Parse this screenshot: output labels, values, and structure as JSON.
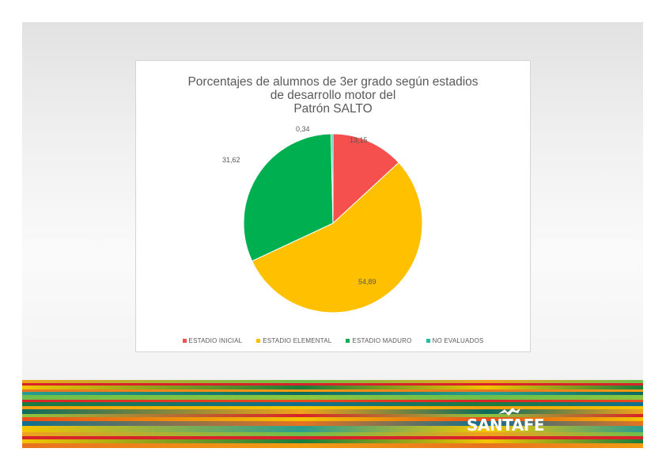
{
  "chart_data": {
    "type": "pie",
    "title_lines": [
      "Porcentajes de alumnos de 3er grado según estadios",
      "de desarrollo motor del",
      "Patrón SALTO"
    ],
    "slices": [
      {
        "label": "ESTADIO INICIAL",
        "value": 13.15,
        "display": "13,15",
        "color": "#f5504e"
      },
      {
        "label": "ESTADIO ELEMENTAL",
        "value": 54.89,
        "display": "54,89",
        "color": "#ffc000"
      },
      {
        "label": "ESTADIO MADURO",
        "value": 31.62,
        "display": "31,62",
        "color": "#00b050"
      },
      {
        "label": "NO EVALUADOS",
        "value": 0.34,
        "display": "0,34",
        "color": "#1fbfa6"
      }
    ],
    "legend_position": "bottom"
  },
  "branding": {
    "logo_text": "SANTAFE",
    "stripe_colors": [
      "#f0a21c",
      "#d8232a",
      "#f5c400",
      "#e8731f",
      "#2a9d8f",
      "#6dbf4b",
      "#d8232a",
      "#1b7c3d",
      "#f39c12",
      "#0e6b5e",
      "#8cc63f",
      "#e84e1b",
      "#116f8f",
      "#f5c400"
    ]
  }
}
